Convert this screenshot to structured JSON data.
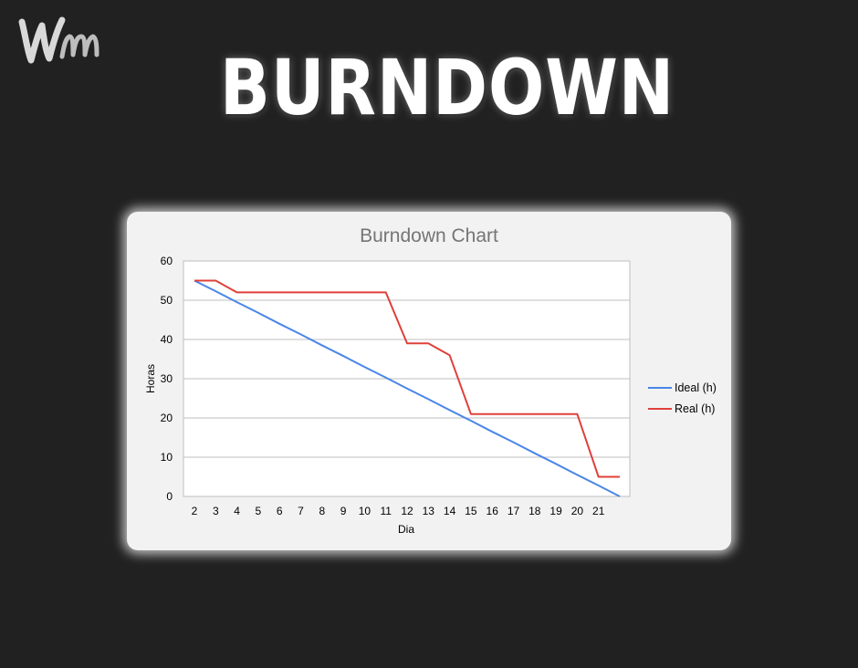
{
  "page": {
    "title": "BURNDOWN",
    "logo_name": "wm-logo"
  },
  "chart_data": {
    "type": "line",
    "title": "Burndown Chart",
    "xlabel": "Dia",
    "ylabel": "Horas",
    "categories": [
      "2",
      "3",
      "4",
      "5",
      "6",
      "7",
      "8",
      "9",
      "10",
      "11",
      "12",
      "13",
      "14",
      "15",
      "16",
      "17",
      "18",
      "19",
      "20",
      "21",
      ""
    ],
    "ylim": [
      0,
      60
    ],
    "yticks": [
      0,
      10,
      20,
      30,
      40,
      50,
      60
    ],
    "grid": true,
    "legend_position": "right",
    "series": [
      {
        "name": "Ideal (h)",
        "color": "#4a86e8",
        "values": [
          55,
          52.3,
          49.5,
          46.8,
          44,
          41.3,
          38.5,
          35.8,
          33,
          30.3,
          27.5,
          24.8,
          22,
          19.3,
          16.5,
          13.8,
          11,
          8.3,
          5.5,
          2.8,
          0
        ]
      },
      {
        "name": "Real (h)",
        "color": "#e0403a",
        "values": [
          55,
          55,
          52,
          52,
          52,
          52,
          52,
          52,
          52,
          52,
          39,
          39,
          36,
          21,
          21,
          21,
          21,
          21,
          21,
          5,
          5
        ]
      }
    ]
  }
}
